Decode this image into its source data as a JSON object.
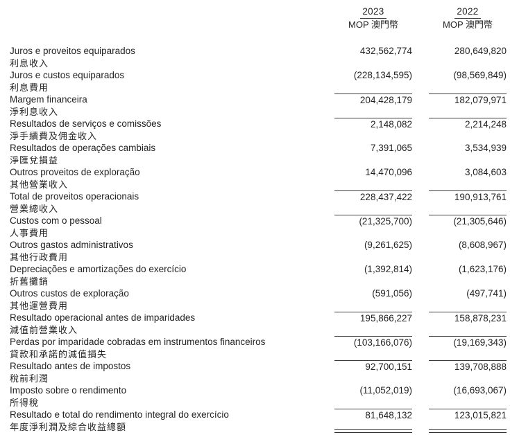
{
  "header": {
    "columns": [
      {
        "year": "2023",
        "currency": "MOP 澳門幣"
      },
      {
        "year": "2022",
        "currency": "MOP 澳門幣"
      }
    ]
  },
  "rows": [
    {
      "pt": "Juros e proveitos equiparados",
      "zh": "利息收入",
      "y2023": "432,562,774",
      "y2022": "280,649,820",
      "rule_above": false
    },
    {
      "pt": "Juros e custos equiparados",
      "zh": "利息費用",
      "y2023": "(228,134,595)",
      "y2022": "(98,569,849)",
      "rule_above": false
    },
    {
      "pt": "Margem financeira",
      "zh": "淨利息收入",
      "y2023": "204,428,179",
      "y2022": "182,079,971",
      "rule_above": true
    },
    {
      "pt": "Resultados de serviços e comissões",
      "zh": "淨手續費及佣金收入",
      "y2023": "2,148,082",
      "y2022": "2,214,248",
      "rule_above": true
    },
    {
      "pt": "Resultados de operações cambiais",
      "zh": "淨匯兌損益",
      "y2023": "7,391,065",
      "y2022": "3,534,939",
      "rule_above": false
    },
    {
      "pt": "Outros proveitos de exploração",
      "zh": "其他營業收入",
      "y2023": "14,470,096",
      "y2022": "3,084,603",
      "rule_above": false
    },
    {
      "pt": "Total de proveitos operacionais",
      "zh": "營業總收入",
      "y2023": "228,437,422",
      "y2022": "190,913,761",
      "rule_above": true
    },
    {
      "pt": "Custos com o pessoal",
      "zh": "人事費用",
      "y2023": "(21,325,700)",
      "y2022": "(21,305,646)",
      "rule_above": true
    },
    {
      "pt": "Outros gastos administrativos",
      "zh": "其他行政費用",
      "y2023": "(9,261,625)",
      "y2022": "(8,608,967)",
      "rule_above": false
    },
    {
      "pt": "Depreciações e amortizações do exercício",
      "zh": "折舊攤銷",
      "y2023": "(1,392,814)",
      "y2022": "(1,623,176)",
      "rule_above": false
    },
    {
      "pt": "Outros custos de exploração",
      "zh": "其他運營費用",
      "y2023": "(591,056)",
      "y2022": "(497,741)",
      "rule_above": false
    },
    {
      "pt": "Resultado operacional antes de imparidades",
      "zh": "減值前營業收入",
      "y2023": "195,866,227",
      "y2022": "158,878,231",
      "rule_above": true
    },
    {
      "pt": "Perdas por imparidade cobradas em instrumentos financeiros",
      "zh": "貸款和承諾的減值損失",
      "y2023": "(103,166,076)",
      "y2022": "(19,169,343)",
      "rule_above": true
    },
    {
      "pt": "Resultado antes de impostos",
      "zh": "稅前利潤",
      "y2023": "92,700,151",
      "y2022": "139,708,888",
      "rule_above": true
    },
    {
      "pt": "Imposto sobre o rendimento",
      "zh": "所得稅",
      "y2023": "(11,052,019)",
      "y2022": "(16,693,067)",
      "rule_above": false
    },
    {
      "pt": "Resultado e total do rendimento integral do exercício",
      "zh": "年度淨利潤及綜合收益總額",
      "y2023": "81,648,132",
      "y2022": "123,015,821",
      "rule_above": true,
      "double_rule_below": true
    }
  ]
}
